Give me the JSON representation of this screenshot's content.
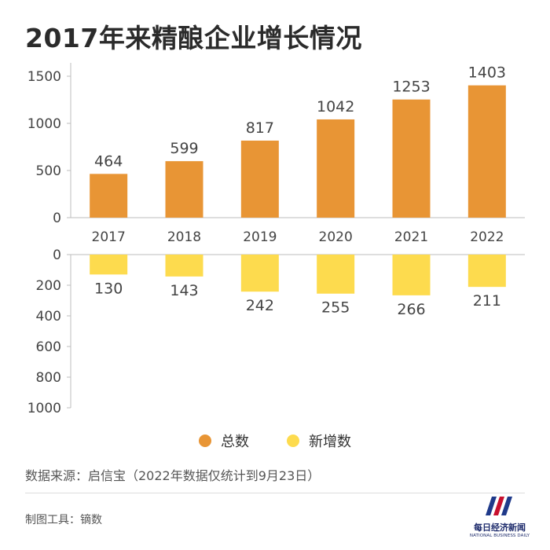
{
  "title": "2017年来精酿企业增长情况",
  "chart_data": {
    "type": "bar",
    "categories": [
      "2017",
      "2018",
      "2019",
      "2020",
      "2021",
      "2022"
    ],
    "series": [
      {
        "name": "总数",
        "values": [
          464,
          599,
          817,
          1042,
          1253,
          1403
        ],
        "color": "#E89535"
      },
      {
        "name": "新增数",
        "values": [
          130,
          143,
          242,
          255,
          266,
          211
        ],
        "color": "#FDDB4E"
      }
    ],
    "top_axis": {
      "ylim": [
        0,
        1600
      ],
      "ticks": [
        0,
        500,
        1000,
        1500
      ]
    },
    "bottom_axis": {
      "ylim": [
        0,
        1000
      ],
      "ticks": [
        0,
        200,
        400,
        600,
        800,
        1000
      ],
      "inverted": true
    },
    "legend_position": "bottom-center"
  },
  "legend": [
    {
      "label": "总数",
      "color": "#E89535"
    },
    {
      "label": "新增数",
      "color": "#FDDB4E"
    }
  ],
  "source": "数据来源：启信宝（2022年数据仅统计到9月23日）",
  "tool": "制图工具：镝数",
  "logo": {
    "cn": "每日经济新闻",
    "en": "NATIONAL BUSINESS DAILY"
  }
}
